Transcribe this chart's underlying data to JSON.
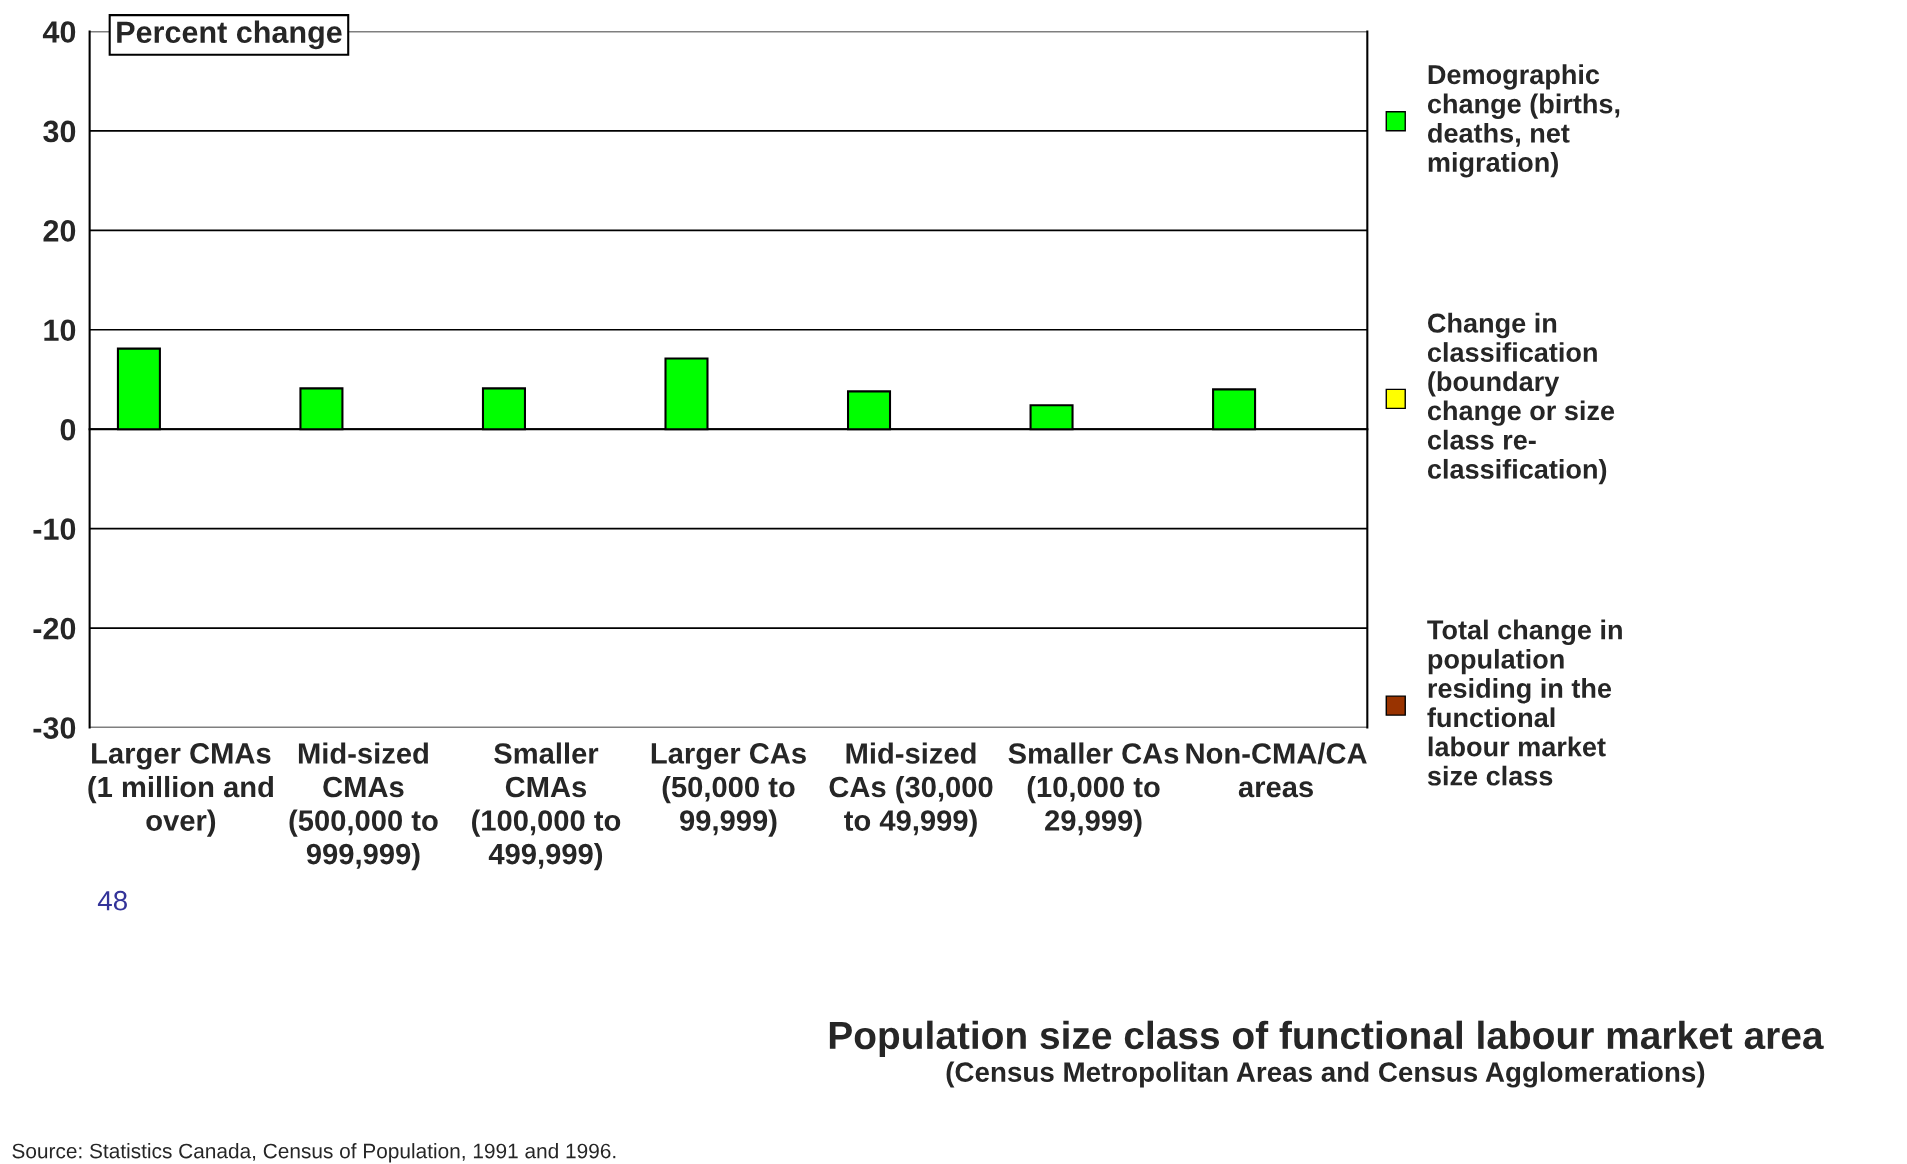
{
  "chart_data": {
    "type": "bar",
    "ylabel": "Percent change",
    "xlabel": "Population size class of functional labour market area\n(Census Metropolitan Areas and Census Agglomerations)",
    "categories": [
      "Larger CMAs\n(1 million and\nover)",
      "Mid-sized\nCMAs\n(500,000 to\n999,999)",
      "Smaller\nCMAs\n(100,000 to\n499,999)",
      "Larger CAs\n(50,000 to\n99,999)",
      "Mid-sized\nCAs (30,000\nto 49,999)",
      "Smaller CAs\n(10,000 to\n29,999)",
      "Non-CMA/CA\nareas"
    ],
    "series": [
      {
        "name": "Demographic\nchange (births,\ndeaths, net\nmigration)",
        "color": "#00ff00",
        "values": [
          8.1,
          4.1,
          4.1,
          7.1,
          3.8,
          2.4,
          4.0
        ]
      },
      {
        "name": "Change in\nclassification\n(boundary\nchange or size\nclass re-\nclassification)",
        "color": "#ffff00",
        "values": [
          null,
          null,
          null,
          null,
          null,
          null,
          null
        ]
      },
      {
        "name": "Total change in\npopulation\nresiding in the\nfunctional\nlabour market\nsize class",
        "color": "#993300",
        "values": [
          null,
          null,
          null,
          null,
          null,
          null,
          null
        ]
      }
    ],
    "ylim": [
      -30,
      40
    ],
    "yticks": [
      -30,
      -20,
      -10,
      0,
      10,
      20,
      30,
      40
    ],
    "grid": "y",
    "legend": "right",
    "annotations": [
      "48",
      "Source: Statistics Canada, Census of Population, 1991 and 1996."
    ]
  }
}
